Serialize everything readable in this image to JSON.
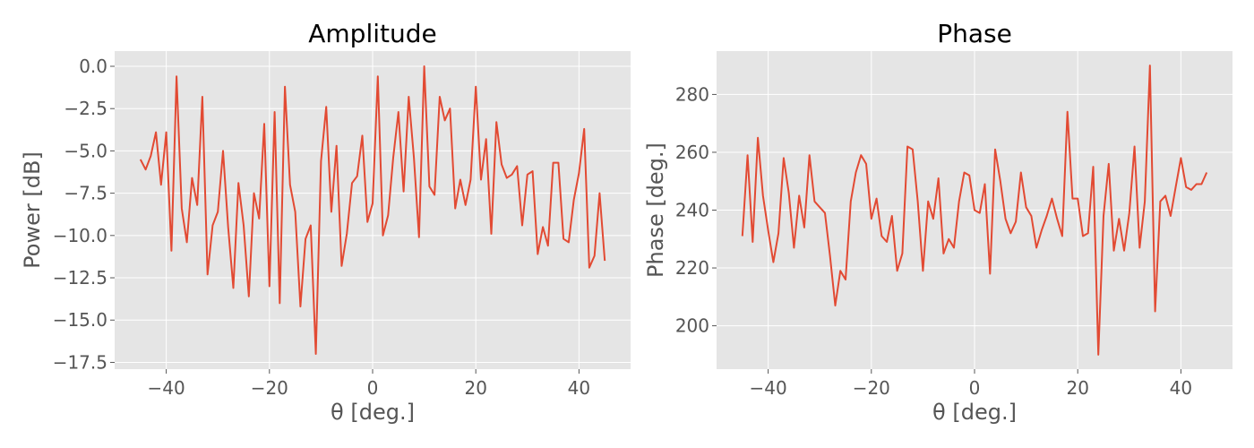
{
  "style": {
    "plot_background": "#E5E5E5",
    "grid_color": "#FFFFFF",
    "line_color": "#E24A33",
    "text_color": "#555555",
    "title_color": "#000000"
  },
  "chart_data": [
    {
      "type": "line",
      "title": "Amplitude",
      "xlabel": "θ [deg.]",
      "ylabel": "Power [dB]",
      "xlim": [
        -50,
        50
      ],
      "ylim": [
        -17.9,
        0.9
      ],
      "xticks": [
        -40,
        -20,
        0,
        20,
        40
      ],
      "xtick_labels": [
        "−40",
        "−20",
        "0",
        "20",
        "40"
      ],
      "yticks": [
        0,
        -2.5,
        -5,
        -7.5,
        -10,
        -12.5,
        -15,
        -17.5
      ],
      "ytick_labels": [
        "0.0",
        "−2.5",
        "−5.0",
        "−7.5",
        "−10.0",
        "−12.5",
        "−15.0",
        "−17.5"
      ],
      "grid": true,
      "series": [
        {
          "x": [
            -45,
            -44,
            -43,
            -42,
            -41,
            -40,
            -39,
            -38,
            -37,
            -36,
            -35,
            -34,
            -33,
            -32,
            -31,
            -30,
            -29,
            -28,
            -27,
            -26,
            -25,
            -24,
            -23,
            -22,
            -21,
            -20,
            -19,
            -18,
            -17,
            -16,
            -15,
            -14,
            -13,
            -12,
            -11,
            -10,
            -9,
            -8,
            -7,
            -6,
            -5,
            -4,
            -3,
            -2,
            -1,
            0,
            1,
            2,
            3,
            4,
            5,
            6,
            7,
            8,
            9,
            10,
            11,
            12,
            13,
            14,
            15,
            16,
            17,
            18,
            19,
            20,
            21,
            22,
            23,
            24,
            25,
            26,
            27,
            28,
            29,
            30,
            31,
            32,
            33,
            34,
            35,
            36,
            37,
            38,
            39,
            40,
            41,
            42,
            43,
            44,
            45
          ],
          "y": [
            -5.5,
            -6.1,
            -5.3,
            -3.9,
            -7.0,
            -3.9,
            -10.9,
            -0.6,
            -8.4,
            -10.4,
            -6.6,
            -8.2,
            -1.8,
            -12.3,
            -9.4,
            -8.6,
            -5.0,
            -9.5,
            -13.1,
            -6.9,
            -9.4,
            -13.6,
            -7.5,
            -9.0,
            -3.4,
            -13.0,
            -2.7,
            -14.0,
            -1.2,
            -7.0,
            -8.6,
            -14.2,
            -10.2,
            -9.4,
            -17.0,
            -5.6,
            -2.4,
            -8.6,
            -4.7,
            -11.8,
            -9.9,
            -6.9,
            -6.5,
            -4.1,
            -9.2,
            -8.1,
            -0.6,
            -10.0,
            -8.8,
            -5.4,
            -2.7,
            -7.4,
            -1.8,
            -5.4,
            -10.1,
            0.0,
            -7.1,
            -7.6,
            -1.8,
            -3.2,
            -2.5,
            -8.4,
            -6.7,
            -8.2,
            -6.7,
            -1.2,
            -6.7,
            -4.3,
            -9.9,
            -3.3,
            -5.8,
            -6.6,
            -6.4,
            -5.9,
            -9.4,
            -6.4,
            -6.2,
            -11.1,
            -9.5,
            -10.6,
            -5.7,
            -5.7,
            -10.2,
            -10.4,
            -7.9,
            -6.3,
            -3.7,
            -11.9,
            -11.2,
            -7.5,
            -11.5
          ]
        }
      ]
    },
    {
      "type": "line",
      "title": "Phase",
      "xlabel": "θ [deg.]",
      "ylabel": "Phase [deg.]",
      "xlim": [
        -50,
        50
      ],
      "ylim": [
        185,
        295
      ],
      "xticks": [
        -40,
        -20,
        0,
        20,
        40
      ],
      "xtick_labels": [
        "−40",
        "−20",
        "0",
        "20",
        "40"
      ],
      "yticks": [
        200,
        220,
        240,
        260,
        280
      ],
      "ytick_labels": [
        "200",
        "220",
        "240",
        "260",
        "280"
      ],
      "grid": true,
      "series": [
        {
          "x": [
            -45,
            -44,
            -43,
            -42,
            -41,
            -40,
            -39,
            -38,
            -37,
            -36,
            -35,
            -34,
            -33,
            -32,
            -31,
            -30,
            -29,
            -28,
            -27,
            -26,
            -25,
            -24,
            -23,
            -22,
            -21,
            -20,
            -19,
            -18,
            -17,
            -16,
            -15,
            -14,
            -13,
            -12,
            -11,
            -10,
            -9,
            -8,
            -7,
            -6,
            -5,
            -4,
            -3,
            -2,
            -1,
            0,
            1,
            2,
            3,
            4,
            5,
            6,
            7,
            8,
            9,
            10,
            11,
            12,
            13,
            14,
            15,
            16,
            17,
            18,
            19,
            20,
            21,
            22,
            23,
            24,
            25,
            26,
            27,
            28,
            29,
            30,
            31,
            32,
            33,
            34,
            35,
            36,
            37,
            38,
            39,
            40,
            41,
            42,
            43,
            44,
            45
          ],
          "y": [
            231,
            259,
            229,
            265,
            245,
            233,
            222,
            232,
            258,
            246,
            227,
            245,
            234,
            259,
            243,
            241,
            239,
            224,
            207,
            219,
            216,
            243,
            253,
            259,
            256,
            237,
            244,
            231,
            229,
            238,
            219,
            225,
            262,
            261,
            243,
            219,
            243,
            237,
            251,
            225,
            230,
            227,
            243,
            253,
            252,
            240,
            239,
            249,
            218,
            261,
            250,
            237,
            232,
            236,
            253,
            241,
            238,
            227,
            233,
            238,
            244,
            237,
            231,
            274,
            244,
            244,
            231,
            232,
            255,
            190,
            238,
            256,
            226,
            237,
            226,
            239,
            262,
            227,
            243,
            290,
            205,
            243,
            245,
            238,
            248,
            258,
            248,
            247,
            249,
            249,
            253
          ]
        }
      ]
    }
  ]
}
